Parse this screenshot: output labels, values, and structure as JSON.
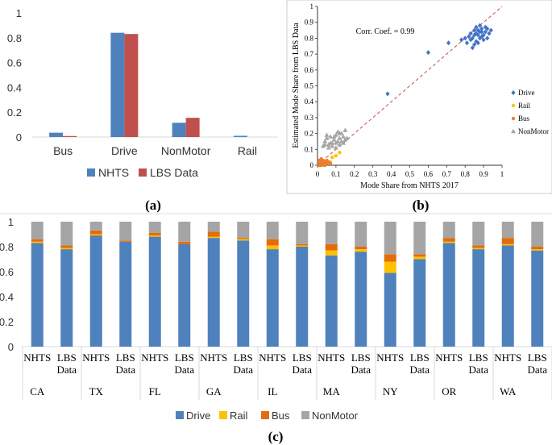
{
  "chart_data": [
    {
      "id": "a",
      "type": "bar",
      "panel_label": "(a)",
      "categories": [
        "Bus",
        "Drive",
        "NonMotor",
        "Rail"
      ],
      "series": [
        {
          "name": "NHTS",
          "color": "#4f81bd",
          "values": [
            0.035,
            0.84,
            0.115,
            0.01
          ]
        },
        {
          "name": "LBS Data",
          "color": "#c0504d",
          "values": [
            0.008,
            0.83,
            0.155,
            0.0
          ]
        }
      ],
      "yticks": [
        "0",
        "0.2",
        "0.4",
        "0.6",
        "0.8",
        "1"
      ],
      "ylim": [
        0,
        1
      ],
      "legend": "bottom"
    },
    {
      "id": "b",
      "type": "scatter",
      "panel_label": "(b)",
      "xlabel": "Mode Share from NHTS 2017",
      "ylabel": "Estimated Mode Share from LBS Data",
      "xticks": [
        "0",
        "0.1",
        "0.2",
        "0.3",
        "0.4",
        "0.5",
        "0.6",
        "0.7",
        "0.8",
        "0.9",
        "1"
      ],
      "yticks": [
        "0",
        "0.1",
        "0.2",
        "0.3",
        "0.4",
        "0.5",
        "0.6",
        "0.7",
        "0.8",
        "0.9",
        "1"
      ],
      "xlim": [
        0,
        1
      ],
      "ylim": [
        0,
        1
      ],
      "annotation": "Corr. Coef. = 0.99",
      "legend": "right",
      "series": [
        {
          "name": "Drive",
          "color": "#4472c4",
          "marker": "diamond",
          "points": [
            [
              0.84,
              0.8
            ],
            [
              0.85,
              0.82
            ],
            [
              0.86,
              0.83
            ],
            [
              0.87,
              0.85
            ],
            [
              0.88,
              0.84
            ],
            [
              0.89,
              0.86
            ],
            [
              0.9,
              0.82
            ],
            [
              0.88,
              0.8
            ],
            [
              0.86,
              0.78
            ],
            [
              0.85,
              0.76
            ],
            [
              0.83,
              0.79
            ],
            [
              0.82,
              0.81
            ],
            [
              0.8,
              0.8
            ],
            [
              0.91,
              0.84
            ],
            [
              0.92,
              0.86
            ],
            [
              0.93,
              0.83
            ],
            [
              0.9,
              0.79
            ],
            [
              0.87,
              0.77
            ],
            [
              0.84,
              0.74
            ],
            [
              0.89,
              0.81
            ],
            [
              0.91,
              0.87
            ],
            [
              0.86,
              0.87
            ],
            [
              0.83,
              0.83
            ],
            [
              0.88,
              0.88
            ],
            [
              0.92,
              0.8
            ],
            [
              0.81,
              0.77
            ],
            [
              0.94,
              0.85
            ],
            [
              0.87,
              0.82
            ],
            [
              0.85,
              0.85
            ],
            [
              0.89,
              0.84
            ],
            [
              0.78,
              0.79
            ],
            [
              0.71,
              0.77
            ],
            [
              0.6,
              0.71
            ],
            [
              0.38,
              0.45
            ]
          ]
        },
        {
          "name": "Rail",
          "color": "#ffc000",
          "marker": "circle",
          "points": [
            [
              0.01,
              0.0
            ],
            [
              0.02,
              0.01
            ],
            [
              0.03,
              0.02
            ],
            [
              0.04,
              0.01
            ],
            [
              0.05,
              0.03
            ],
            [
              0.02,
              0.03
            ],
            [
              0.08,
              0.05
            ],
            [
              0.1,
              0.06
            ],
            [
              0.07,
              0.02
            ],
            [
              0.12,
              0.08
            ],
            [
              0.01,
              0.02
            ],
            [
              0.03,
              0.0
            ]
          ]
        },
        {
          "name": "Bus",
          "color": "#ed7d31",
          "marker": "circle",
          "points": [
            [
              0.01,
              0.01
            ],
            [
              0.02,
              0.02
            ],
            [
              0.03,
              0.01
            ],
            [
              0.04,
              0.02
            ],
            [
              0.05,
              0.01
            ],
            [
              0.02,
              0.0
            ],
            [
              0.03,
              0.03
            ],
            [
              0.06,
              0.02
            ],
            [
              0.01,
              0.03
            ],
            [
              0.04,
              0.0
            ],
            [
              0.05,
              0.03
            ],
            [
              0.07,
              0.01
            ],
            [
              0.02,
              0.04
            ],
            [
              0.03,
              0.02
            ],
            [
              0.01,
              0.0
            ]
          ]
        },
        {
          "name": "NonMotor",
          "color": "#a5a5a5",
          "marker": "triangle",
          "points": [
            [
              0.03,
              0.12
            ],
            [
              0.04,
              0.15
            ],
            [
              0.05,
              0.17
            ],
            [
              0.06,
              0.13
            ],
            [
              0.07,
              0.18
            ],
            [
              0.08,
              0.14
            ],
            [
              0.09,
              0.16
            ],
            [
              0.1,
              0.19
            ],
            [
              0.11,
              0.15
            ],
            [
              0.12,
              0.17
            ],
            [
              0.13,
              0.2
            ],
            [
              0.14,
              0.18
            ],
            [
              0.15,
              0.16
            ],
            [
              0.05,
              0.19
            ],
            [
              0.06,
              0.11
            ],
            [
              0.08,
              0.12
            ],
            [
              0.1,
              0.14
            ],
            [
              0.12,
              0.13
            ],
            [
              0.09,
              0.18
            ],
            [
              0.11,
              0.21
            ],
            [
              0.13,
              0.15
            ],
            [
              0.07,
              0.14
            ],
            [
              0.15,
              0.22
            ],
            [
              0.14,
              0.14
            ],
            [
              0.04,
              0.13
            ],
            [
              0.16,
              0.17
            ],
            [
              0.12,
              0.2
            ],
            [
              0.1,
              0.11
            ]
          ]
        }
      ]
    },
    {
      "id": "c",
      "type": "bar",
      "stacked": true,
      "panel_label": "(c)",
      "states": [
        "CA",
        "TX",
        "FL",
        "GA",
        "IL",
        "MA",
        "NY",
        "OR",
        "WA"
      ],
      "sub_labels": [
        [
          "NHTS"
        ],
        [
          "LBS",
          "Data"
        ]
      ],
      "yticks": [
        "0",
        "0.2",
        "0.4",
        "0.6",
        "0.8",
        "1"
      ],
      "ylim": [
        0,
        1
      ],
      "legend": "bottom",
      "series": [
        {
          "name": "Drive",
          "color": "#4f81bd",
          "values": [
            0.83,
            0.78,
            0.89,
            0.84,
            0.88,
            0.82,
            0.87,
            0.85,
            0.78,
            0.8,
            0.73,
            0.76,
            0.59,
            0.7,
            0.83,
            0.78,
            0.81,
            0.77
          ]
        },
        {
          "name": "Rail",
          "color": "#ffc000",
          "values": [
            0.01,
            0.01,
            0.01,
            0.0,
            0.01,
            0.0,
            0.01,
            0.01,
            0.03,
            0.01,
            0.04,
            0.02,
            0.09,
            0.02,
            0.01,
            0.01,
            0.01,
            0.01
          ]
        },
        {
          "name": "Bus",
          "color": "#e46c0a",
          "values": [
            0.02,
            0.02,
            0.03,
            0.01,
            0.02,
            0.02,
            0.04,
            0.01,
            0.05,
            0.01,
            0.05,
            0.02,
            0.06,
            0.02,
            0.03,
            0.02,
            0.05,
            0.02
          ]
        },
        {
          "name": "NonMotor",
          "color": "#a5a5a5",
          "values": [
            0.14,
            0.19,
            0.07,
            0.15,
            0.09,
            0.16,
            0.08,
            0.13,
            0.14,
            0.18,
            0.18,
            0.2,
            0.26,
            0.26,
            0.13,
            0.19,
            0.13,
            0.2
          ]
        }
      ]
    }
  ]
}
